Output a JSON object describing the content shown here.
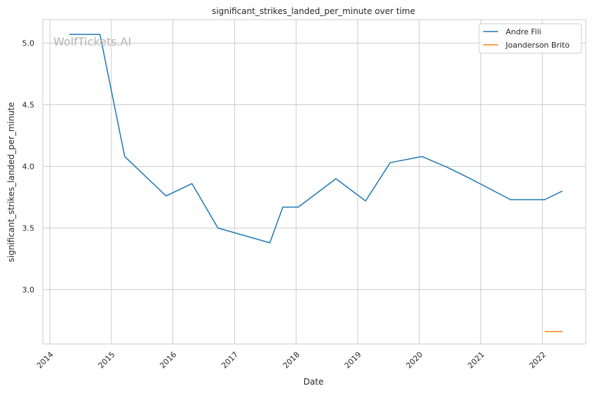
{
  "chart_data": {
    "type": "line",
    "title": "significant_strikes_landed_per_minute over time",
    "xlabel": "Date",
    "ylabel": "significant_strikes_landed_per_minute",
    "watermark": "WolfTickets.AI",
    "xlim": [
      "2013-11-20",
      "2022-09-15"
    ],
    "ylim": [
      2.56,
      5.19
    ],
    "x_ticks": [
      "2014",
      "2015",
      "2016",
      "2017",
      "2018",
      "2019",
      "2020",
      "2021",
      "2022"
    ],
    "y_ticks": [
      "3.0",
      "3.5",
      "4.0",
      "4.5",
      "5.0"
    ],
    "grid": true,
    "legend_position": "top-right",
    "series": [
      {
        "name": "Andre Fili",
        "color": "#1f77b4",
        "points": [
          {
            "x": "2014-04-26",
            "y": 5.07
          },
          {
            "x": "2014-10-25",
            "y": 5.07
          },
          {
            "x": "2015-03-21",
            "y": 4.08
          },
          {
            "x": "2015-11-21",
            "y": 3.76
          },
          {
            "x": "2016-04-23",
            "y": 3.86
          },
          {
            "x": "2016-09-24",
            "y": 3.5
          },
          {
            "x": "2017-07-29",
            "y": 3.38
          },
          {
            "x": "2017-10-14",
            "y": 3.67
          },
          {
            "x": "2018-01-14",
            "y": 3.67
          },
          {
            "x": "2018-08-25",
            "y": 3.9
          },
          {
            "x": "2019-02-17",
            "y": 3.72
          },
          {
            "x": "2019-07-13",
            "y": 4.03
          },
          {
            "x": "2020-01-18",
            "y": 4.08
          },
          {
            "x": "2020-06-20",
            "y": 3.99
          },
          {
            "x": "2020-10-31",
            "y": 3.9
          },
          {
            "x": "2021-06-26",
            "y": 3.73
          },
          {
            "x": "2022-01-15",
            "y": 3.73
          },
          {
            "x": "2022-04-30",
            "y": 3.8
          }
        ]
      },
      {
        "name": "Joanderson Brito",
        "color": "#ff7f0e",
        "points": [
          {
            "x": "2022-01-15",
            "y": 2.66
          },
          {
            "x": "2022-04-30",
            "y": 2.66
          }
        ]
      }
    ]
  }
}
